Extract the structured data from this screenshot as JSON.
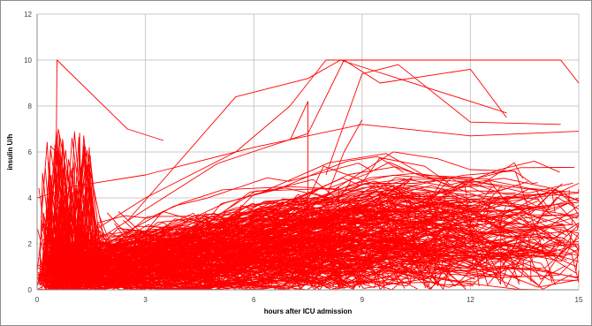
{
  "chart_data": {
    "type": "line",
    "title": "",
    "xlabel": "hours after ICU admission",
    "ylabel": "insulin U/h",
    "xlim": [
      0,
      15
    ],
    "ylim": [
      0,
      12
    ],
    "x_ticks": [
      0,
      3,
      6,
      9,
      12,
      15
    ],
    "x_tick_labels": [
      "0",
      "3",
      "6",
      "9",
      "12",
      "15"
    ],
    "y_ticks": [
      0,
      2,
      4,
      6,
      8,
      10,
      12
    ],
    "y_tick_labels": [
      "0",
      "2",
      "4",
      "6",
      "8",
      "10",
      "12"
    ],
    "grid": true,
    "legend": "none",
    "series_color": "#ff0000",
    "series_count_estimate": 300,
    "notable_series": [
      {
        "x": [
          0.0,
          0.5,
          0.55,
          2.5,
          3.5
        ],
        "y": [
          0.0,
          0.5,
          10.0,
          7.0,
          6.5
        ]
      },
      {
        "x": [
          0.0,
          3.0,
          5.5,
          7.0,
          8.0,
          10.0,
          14.5,
          15.0
        ],
        "y": [
          1.0,
          4.0,
          6.0,
          8.0,
          10.0,
          10.0,
          10.0,
          9.0
        ]
      },
      {
        "x": [
          0.0,
          2.0,
          5.0,
          7.5,
          8.5,
          9.5,
          12.0,
          13.0
        ],
        "y": [
          0.5,
          2.5,
          5.5,
          6.8,
          10.0,
          9.0,
          9.6,
          7.5
        ]
      },
      {
        "x": [
          2.5,
          5.5,
          7.5,
          8.4,
          10.0,
          13.0
        ],
        "y": [
          3.0,
          8.4,
          9.2,
          10.0,
          9.2,
          7.7
        ]
      },
      {
        "x": [
          8.0,
          9.0,
          10.0,
          12.0,
          14.5
        ],
        "y": [
          5.0,
          9.4,
          9.8,
          7.3,
          7.2
        ]
      },
      {
        "x": [
          7.0,
          7.5,
          7.5,
          8.5,
          9.0
        ],
        "y": [
          6.5,
          8.2,
          2.0,
          6.0,
          7.4
        ]
      },
      {
        "x": [
          0.0,
          1.0,
          3.0,
          6.0,
          9.0,
          12.0,
          15.0
        ],
        "y": [
          4.0,
          4.5,
          5.0,
          6.2,
          7.2,
          6.7,
          6.9
        ]
      }
    ]
  }
}
